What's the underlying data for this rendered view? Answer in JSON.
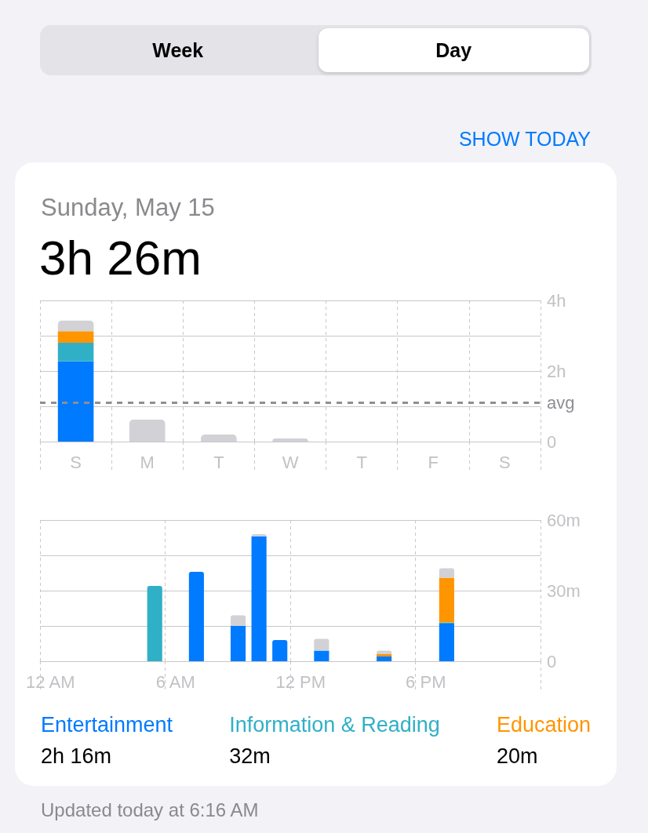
{
  "chart_data": [
    {
      "type": "bar",
      "title": "Sunday, May 15",
      "subtitle": "3h 26m",
      "categories": [
        "S",
        "M",
        "T",
        "W",
        "T",
        "F",
        "S"
      ],
      "stacked": true,
      "series": [
        {
          "color": "#007aff",
          "values": [
            2.27,
            null,
            null,
            null,
            null,
            null,
            null
          ]
        },
        {
          "color": "#30b0c7",
          "values": [
            0.53,
            null,
            null,
            null,
            null,
            null,
            null
          ]
        },
        {
          "color": "#ff9500",
          "values": [
            0.33,
            null,
            null,
            null,
            null,
            null,
            null
          ]
        },
        {
          "color": "#d1d1d6",
          "values": [
            0.3,
            0.62,
            0.2,
            0.09,
            null,
            null,
            null
          ]
        }
      ],
      "ylim": [
        0,
        4
      ],
      "yticks": [
        0,
        {
          "value": 1,
          "label": null
        },
        {
          "value": 2,
          "label": "2h"
        },
        {
          "value": 3,
          "label": null
        },
        {
          "value": 4,
          "label": "4h"
        }
      ],
      "grid": true,
      "ref_lines": [
        {
          "axis": "y",
          "value": 1.11,
          "label": "avg",
          "color": "#8e8e93",
          "line_style": "dashed"
        }
      ],
      "annotations": [
        "Week",
        "Day",
        "SHOW TODAY"
      ]
    },
    {
      "type": "bar",
      "categories": [
        "12 AM",
        null,
        null,
        null,
        null,
        null,
        "6 AM",
        null,
        null,
        null,
        null,
        null,
        "12 PM",
        null,
        null,
        null,
        null,
        null,
        "6 PM",
        null,
        null,
        null,
        null,
        null
      ],
      "stacked": true,
      "series": [
        {
          "name": "Entertainment",
          "color": "#007aff",
          "values": [
            null,
            null,
            null,
            null,
            null,
            null,
            null,
            38,
            null,
            15,
            53,
            9,
            null,
            4.5,
            null,
            null,
            2,
            null,
            null,
            16,
            null,
            null,
            null,
            null
          ]
        },
        {
          "name": "Information & Reading",
          "color": "#30b0c7",
          "values": [
            null,
            null,
            null,
            null,
            null,
            32,
            null,
            null,
            null,
            null,
            null,
            null,
            null,
            null,
            null,
            null,
            null,
            null,
            null,
            0.5,
            null,
            null,
            null,
            null
          ]
        },
        {
          "name": "Education",
          "color": "#ff9500",
          "values": [
            null,
            null,
            null,
            null,
            null,
            null,
            null,
            null,
            null,
            null,
            null,
            null,
            null,
            null,
            null,
            null,
            1,
            null,
            null,
            19,
            null,
            null,
            null,
            null
          ]
        },
        {
          "color": "#d1d1d6",
          "values": [
            null,
            null,
            null,
            null,
            null,
            null,
            null,
            null,
            null,
            4.5,
            1,
            null,
            null,
            5,
            null,
            null,
            1.5,
            null,
            null,
            4,
            null,
            null,
            null,
            null
          ]
        }
      ],
      "ylim": [
        0,
        60
      ],
      "yticks": [
        0,
        {
          "value": 15,
          "label": null
        },
        {
          "value": 30,
          "label": "30m"
        },
        {
          "value": 45,
          "label": null
        },
        {
          "value": 60,
          "label": "60m"
        }
      ],
      "grid": true,
      "legend": "bottom",
      "annotations": [
        "2h 16m",
        "32m",
        "20m",
        "Updated today at 6:16 AM"
      ]
    }
  ]
}
